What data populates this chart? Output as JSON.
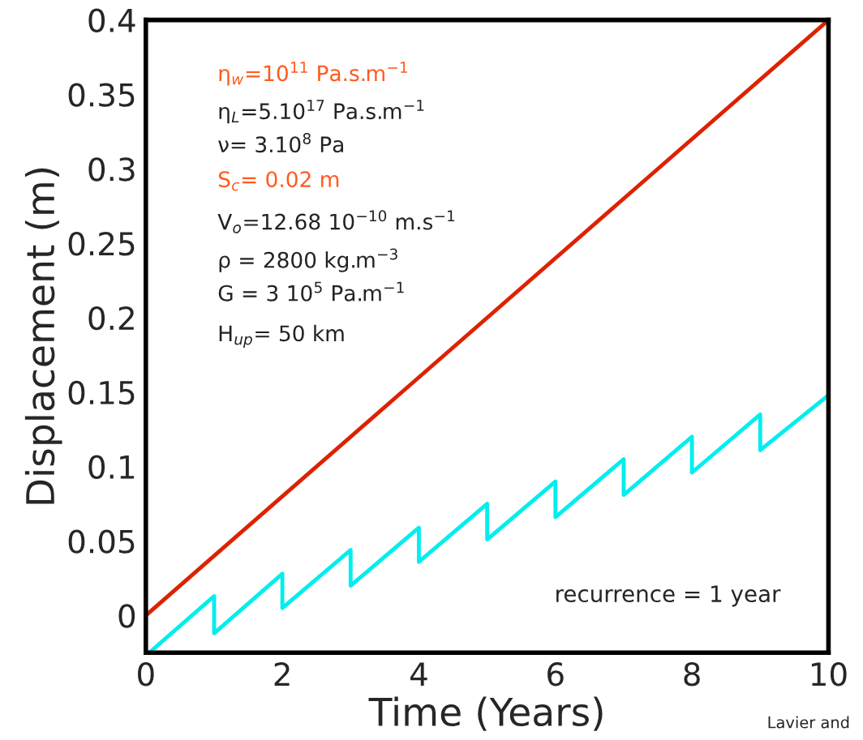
{
  "chart_data": {
    "type": "line",
    "xlabel": "Time (Years)",
    "ylabel": "Displacement (m)",
    "xlim": [
      0,
      10
    ],
    "xticks": [
      0,
      2,
      4,
      6,
      8,
      10
    ],
    "ylim": [
      -0.025,
      0.4
    ],
    "yticks": [
      0,
      0.05,
      0.1,
      0.15,
      0.2,
      0.25,
      0.3,
      0.35,
      0.4
    ],
    "grid": false,
    "legend": false,
    "marker": "none",
    "line_style": "solid",
    "series": [
      {
        "color": "#dd2200",
        "x": [
          0,
          10
        ],
        "values": [
          0,
          0.4
        ]
      },
      {
        "color": "#00eeee",
        "x": [
          0.05,
          1,
          1,
          2,
          2,
          3,
          3,
          4,
          4,
          5,
          5,
          6,
          6,
          7,
          7,
          8,
          8,
          9,
          9,
          10
        ],
        "values": [
          -0.025,
          0.013,
          -0.012,
          0.028,
          0.005,
          0.044,
          0.02,
          0.059,
          0.036,
          0.075,
          0.051,
          0.09,
          0.066,
          0.105,
          0.081,
          0.12,
          0.096,
          0.135,
          0.111,
          0.148
        ]
      }
    ],
    "annotations": [
      "η$_{w}$=10$^{11}$ Pa.s.m$^{−1}$",
      "η$_{L}$=5.10$^{17}$ Pa.s.m$^{−1}$",
      "ν= 3.10$^{8}$ Pa",
      "S$_{c}$= 0.02 m",
      "V$_{o}$=12.68 10$^{−10}$ m.s$^{−1}$",
      "ρ = 2800 kg.m$^{−3}$",
      "G = 3 10$^{5}$ Pa.m$^{−1}$",
      "H$_{up}$= 50 km",
      "recurrence = 1 year",
      "Lavier and"
    ]
  }
}
